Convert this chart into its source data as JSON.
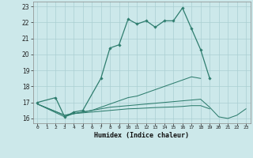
{
  "xlabel": "Humidex (Indice chaleur)",
  "x_values": [
    0,
    1,
    2,
    3,
    4,
    5,
    6,
    7,
    8,
    9,
    10,
    11,
    12,
    13,
    14,
    15,
    16,
    17,
    18,
    19,
    20,
    21,
    22,
    23
  ],
  "line1_x": [
    0,
    2,
    3,
    4,
    5,
    7,
    8,
    9,
    10,
    11,
    12,
    13,
    14,
    15,
    16,
    17,
    18,
    19
  ],
  "line1_y": [
    17.0,
    17.3,
    16.1,
    16.4,
    16.5,
    18.5,
    20.4,
    20.6,
    22.2,
    21.9,
    22.1,
    21.7,
    22.1,
    22.1,
    22.9,
    21.6,
    20.3,
    18.5
  ],
  "line2_x": [
    0,
    3,
    4,
    5,
    6,
    7,
    8,
    9,
    10,
    11,
    12,
    13,
    14,
    15,
    16,
    17,
    18
  ],
  "line2_y": [
    16.9,
    16.1,
    16.3,
    16.4,
    16.5,
    16.7,
    16.9,
    17.1,
    17.3,
    17.4,
    17.6,
    17.8,
    18.0,
    18.2,
    18.4,
    18.6,
    18.5
  ],
  "line3_x": [
    0,
    3,
    4,
    5,
    6,
    7,
    8,
    9,
    10,
    11,
    12,
    13,
    14,
    15,
    16,
    17,
    18,
    19,
    20,
    21,
    22,
    23
  ],
  "line3_y": [
    16.9,
    16.2,
    16.3,
    16.4,
    16.5,
    16.6,
    16.7,
    16.75,
    16.8,
    16.85,
    16.9,
    16.95,
    17.0,
    17.05,
    17.1,
    17.15,
    17.2,
    16.7,
    16.1,
    16.0,
    16.2,
    16.6
  ],
  "line4_x": [
    0,
    3,
    4,
    5,
    6,
    7,
    8,
    9,
    10,
    11,
    12,
    13,
    14,
    15,
    16,
    17,
    18,
    19
  ],
  "line4_y": [
    16.9,
    16.2,
    16.3,
    16.35,
    16.4,
    16.45,
    16.5,
    16.55,
    16.6,
    16.62,
    16.65,
    16.68,
    16.7,
    16.72,
    16.75,
    16.8,
    16.8,
    16.6
  ],
  "line_color": "#2e7d6e",
  "bg_color": "#cce8ea",
  "grid_color": "#aacfd2",
  "ylim": [
    15.7,
    23.3
  ],
  "yticks": [
    16,
    17,
    18,
    19,
    20,
    21,
    22,
    23
  ],
  "xticks": [
    0,
    1,
    2,
    3,
    4,
    5,
    6,
    7,
    8,
    9,
    10,
    11,
    12,
    13,
    14,
    15,
    16,
    17,
    18,
    19,
    20,
    21,
    22,
    23
  ],
  "xlim": [
    -0.5,
    23.5
  ]
}
